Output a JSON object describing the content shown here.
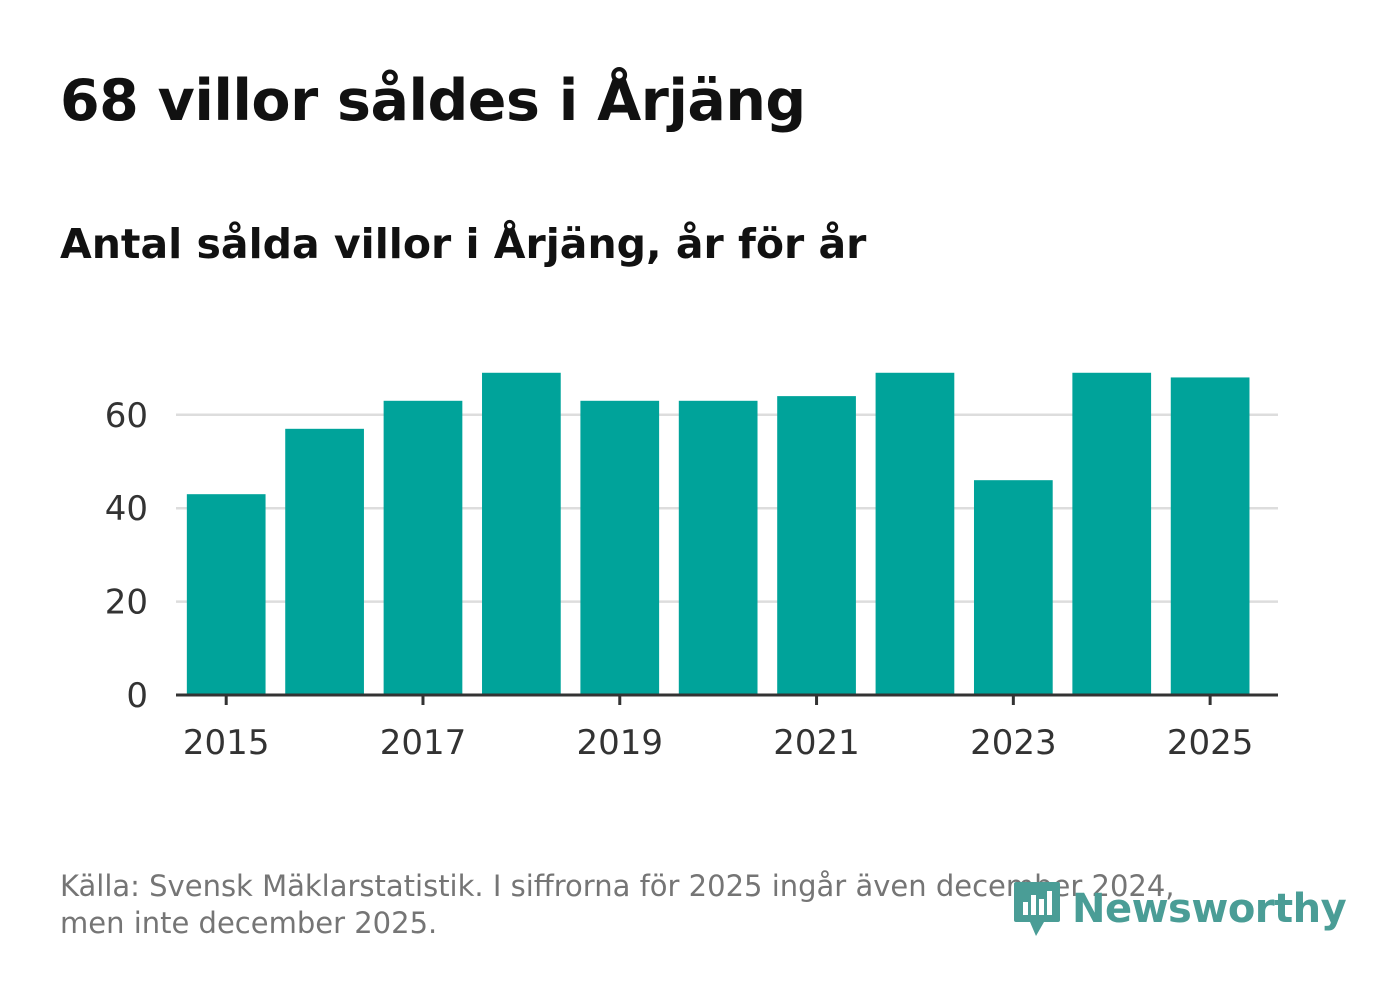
{
  "header": {
    "title": "68 villor såldes i Årjäng",
    "subtitle": "Antal sålda villor i Årjäng, år för år"
  },
  "chart_data": {
    "type": "bar",
    "title": "68 villor såldes i Årjäng",
    "subtitle": "Antal sålda villor i Årjäng, år för år",
    "categories": [
      "2015",
      "2016",
      "2017",
      "2018",
      "2019",
      "2020",
      "2021",
      "2022",
      "2023",
      "2024",
      "2025"
    ],
    "values": [
      43,
      57,
      63,
      69,
      63,
      63,
      64,
      69,
      46,
      69,
      68
    ],
    "x_tick_labels": [
      "2015",
      "2017",
      "2019",
      "2021",
      "2023",
      "2025"
    ],
    "y_ticks": [
      0,
      20,
      40,
      60
    ],
    "ylim": [
      0,
      70
    ],
    "xlabel": "",
    "ylabel": "",
    "grid": true,
    "colors": {
      "bar": "#00a39a",
      "grid": "#dddddd",
      "axis": "#333333"
    }
  },
  "footer": {
    "source_line1": "Källa: Svensk Mäklarstatistik. I siffrorna för 2025 ingår även december 2024,",
    "source_line2": "men inte december 2025.",
    "logo_text": "Newsworthy",
    "logo_icon": "newsworthy-logo-icon",
    "logo_color": "#4a9d96"
  }
}
